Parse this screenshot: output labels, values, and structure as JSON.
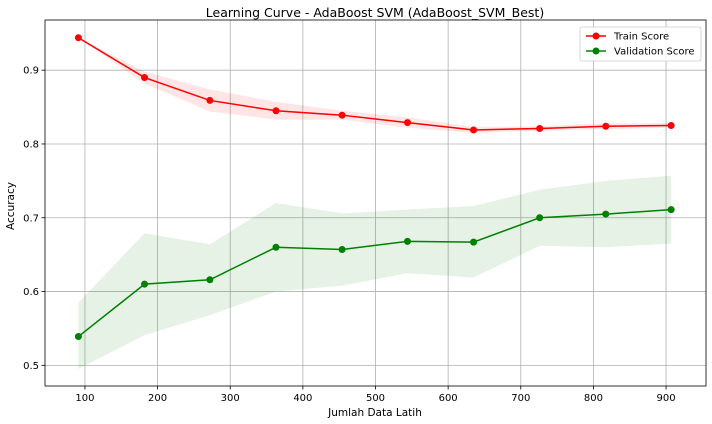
{
  "chart_data": {
    "type": "line",
    "title": "Learning Curve - AdaBoost SVM (AdaBoost_SVM_Best)",
    "xlabel": "Jumlah Data Latih",
    "ylabel": "Accuracy",
    "xlim": [
      45,
      955
    ],
    "ylim": [
      0.472,
      0.968
    ],
    "xticks": [
      100,
      200,
      300,
      400,
      500,
      600,
      700,
      800,
      900
    ],
    "yticks": [
      0.5,
      0.6,
      0.7,
      0.8,
      0.9
    ],
    "grid": true,
    "legend_position": "top-right",
    "x": [
      91,
      182,
      272,
      363,
      454,
      544,
      635,
      726,
      817,
      907
    ],
    "series": [
      {
        "name": "Train Score",
        "color": "#ff0000",
        "values": [
          0.944,
          0.89,
          0.859,
          0.845,
          0.839,
          0.829,
          0.819,
          0.821,
          0.824,
          0.825
        ],
        "band_lower": [
          0.944,
          0.882,
          0.844,
          0.833,
          0.833,
          0.822,
          0.815,
          0.818,
          0.82,
          0.822
        ],
        "band_upper": [
          0.944,
          0.898,
          0.874,
          0.857,
          0.845,
          0.836,
          0.823,
          0.824,
          0.828,
          0.828
        ]
      },
      {
        "name": "Validation Score",
        "color": "#008000",
        "values": [
          0.539,
          0.61,
          0.616,
          0.66,
          0.657,
          0.668,
          0.667,
          0.7,
          0.705,
          0.711
        ],
        "band_lower": [
          0.495,
          0.541,
          0.568,
          0.6,
          0.608,
          0.625,
          0.619,
          0.662,
          0.66,
          0.665
        ],
        "band_upper": [
          0.585,
          0.679,
          0.664,
          0.72,
          0.706,
          0.711,
          0.716,
          0.738,
          0.75,
          0.757
        ]
      }
    ]
  }
}
